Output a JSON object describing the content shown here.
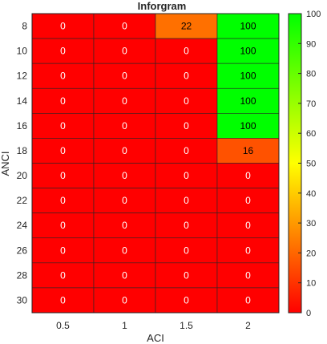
{
  "chart_data": {
    "type": "heatmap",
    "title": "Inforgram",
    "xlabel": "ACI",
    "ylabel": "ANCI",
    "x_categories": [
      "0.5",
      "1",
      "1.5",
      "2"
    ],
    "y_categories": [
      "8",
      "10",
      "12",
      "14",
      "16",
      "18",
      "20",
      "22",
      "24",
      "26",
      "28",
      "30"
    ],
    "values": [
      [
        0,
        0,
        22,
        100
      ],
      [
        0,
        0,
        0,
        100
      ],
      [
        0,
        0,
        0,
        100
      ],
      [
        0,
        0,
        0,
        100
      ],
      [
        0,
        0,
        0,
        100
      ],
      [
        0,
        0,
        0,
        16
      ],
      [
        0,
        0,
        0,
        0
      ],
      [
        0,
        0,
        0,
        0
      ],
      [
        0,
        0,
        0,
        0
      ],
      [
        0,
        0,
        0,
        0
      ],
      [
        0,
        0,
        0,
        0
      ],
      [
        0,
        0,
        0,
        0
      ]
    ],
    "colorbar": {
      "range": [
        0,
        100
      ],
      "ticks": [
        "0",
        "10",
        "20",
        "30",
        "40",
        "50",
        "60",
        "70",
        "80",
        "90",
        "100"
      ],
      "colormap": [
        "#ff0000",
        "#ffff00",
        "#00ff00"
      ]
    }
  }
}
